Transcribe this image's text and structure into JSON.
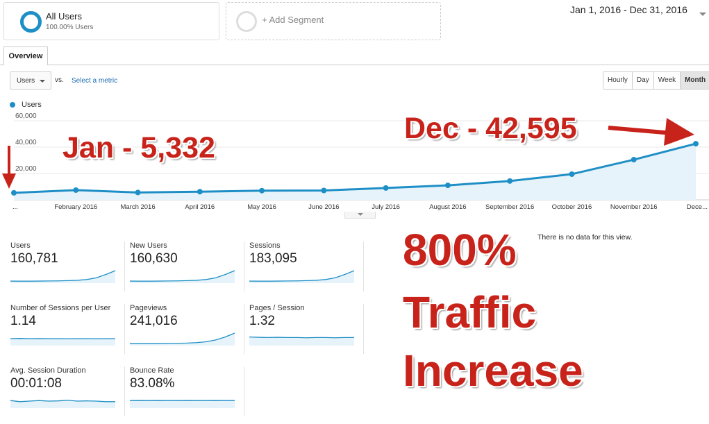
{
  "segments": {
    "all_users": {
      "title": "All Users",
      "subtitle": "100.00% Users"
    },
    "add_segment": "+ Add Segment"
  },
  "date_range": "Jan 1, 2016 - Dec 31, 2016",
  "tabs": [
    {
      "label": "Overview",
      "active": true
    }
  ],
  "metric_selector": {
    "value": "Users",
    "vs": "vs.",
    "select_metric": "Select a metric"
  },
  "periods": [
    {
      "label": "Hourly",
      "active": false
    },
    {
      "label": "Day",
      "active": false
    },
    {
      "label": "Week",
      "active": false
    },
    {
      "label": "Month",
      "active": true
    }
  ],
  "chart_data": {
    "type": "line",
    "series": [
      {
        "name": "Users",
        "color": "#1e8fc6",
        "values": [
          5332,
          7400,
          5600,
          6200,
          7000,
          7100,
          9000,
          11000,
          14300,
          19500,
          30500,
          42595
        ]
      }
    ],
    "x": [
      "...",
      "February 2016",
      "March 2016",
      "April 2016",
      "May 2016",
      "June 2016",
      "July 2016",
      "August 2016",
      "September 2016",
      "October 2016",
      "November 2016",
      "Dece..."
    ],
    "y_ticks": [
      "20,000",
      "40,000",
      "60,000"
    ],
    "ylim": [
      0,
      60000
    ],
    "grid": true,
    "legend": "top-left"
  },
  "scorecards": [
    {
      "label": "Users",
      "value": "160,781",
      "trend": [
        0.06,
        0.05,
        0.05,
        0.06,
        0.07,
        0.08,
        0.1,
        0.13,
        0.2,
        0.35,
        0.65,
        1.0
      ]
    },
    {
      "label": "New Users",
      "value": "160,630",
      "trend": [
        0.06,
        0.05,
        0.05,
        0.06,
        0.07,
        0.08,
        0.1,
        0.13,
        0.2,
        0.35,
        0.65,
        1.0
      ]
    },
    {
      "label": "Sessions",
      "value": "183,095",
      "trend": [
        0.06,
        0.05,
        0.05,
        0.06,
        0.07,
        0.08,
        0.1,
        0.13,
        0.2,
        0.35,
        0.65,
        1.0
      ]
    },
    {
      "label": "Number of Sessions per User",
      "value": "1.14",
      "trend": [
        0.5,
        0.52,
        0.5,
        0.51,
        0.5,
        0.5,
        0.49,
        0.5,
        0.5,
        0.49,
        0.5,
        0.5
      ]
    },
    {
      "label": "Pageviews",
      "value": "241,016",
      "trend": [
        0.05,
        0.05,
        0.05,
        0.06,
        0.07,
        0.08,
        0.1,
        0.14,
        0.22,
        0.38,
        0.65,
        1.0
      ]
    },
    {
      "label": "Pages / Session",
      "value": "1.32",
      "trend": [
        0.65,
        0.62,
        0.6,
        0.62,
        0.6,
        0.6,
        0.58,
        0.6,
        0.6,
        0.58,
        0.6,
        0.6
      ]
    },
    {
      "label": "Avg. Session Duration",
      "value": "00:01:08",
      "trend": [
        0.55,
        0.45,
        0.5,
        0.55,
        0.5,
        0.52,
        0.58,
        0.5,
        0.52,
        0.5,
        0.45,
        0.45
      ]
    },
    {
      "label": "Bounce Rate",
      "value": "83.08%",
      "trend": [
        0.55,
        0.56,
        0.55,
        0.56,
        0.55,
        0.55,
        0.56,
        0.55,
        0.55,
        0.56,
        0.55,
        0.55
      ]
    }
  ],
  "no_data": "There is no data for this view.",
  "annotations": {
    "jan": "Jan - 5,332",
    "dec": "Dec - 42,595",
    "line1": "800%",
    "line2": "Traffic",
    "line3": "Increase"
  },
  "colors": {
    "accent": "#1e8fc6",
    "annotation": "#c8231b",
    "area": "#e7f3fa"
  }
}
